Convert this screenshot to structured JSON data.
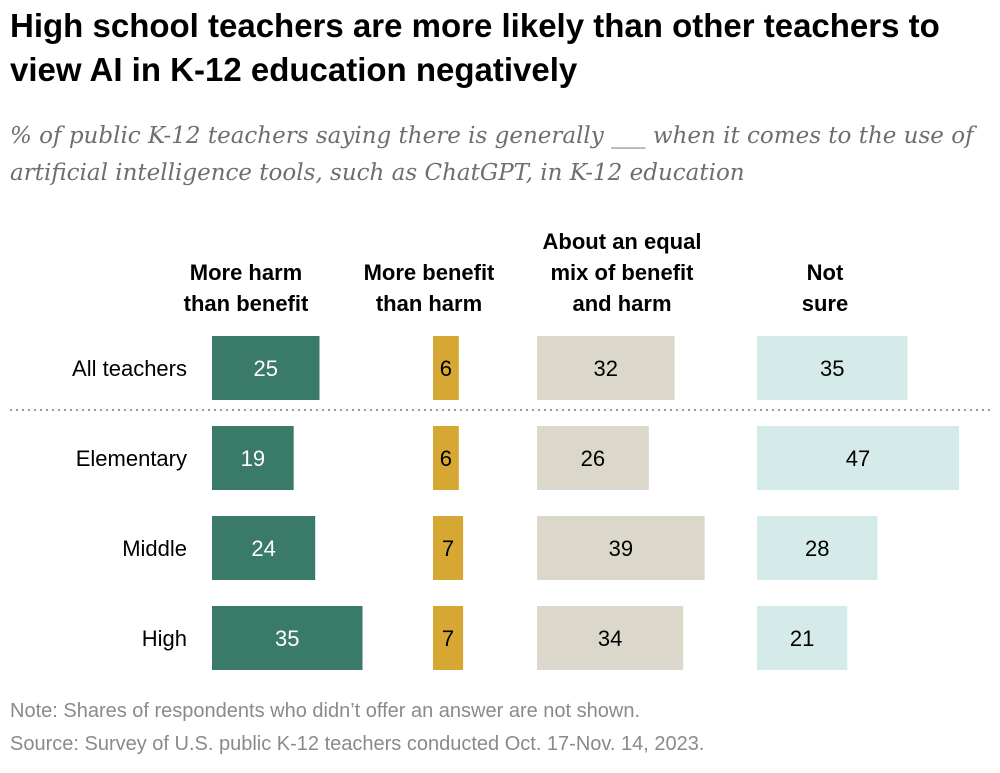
{
  "title": "High school teachers are more likely than other teachers to view AI in K-12 education negatively",
  "subtitle": "% of public K-12 teachers saying there is generally ___ when it comes to the use of artificial intelligence tools, such as ChatGPT, in K-12 education",
  "note": "Note: Shares of respondents who didn’t offer an answer are not shown.",
  "source": "Source: Survey of U.S. public K-12 teachers conducted Oct. 17-Nov. 14, 2023.",
  "chart_data": {
    "type": "bar",
    "orientation": "horizontal",
    "layout": "side-by-side columns",
    "categories": [
      "All teachers",
      "Elementary",
      "Middle",
      "High"
    ],
    "separator_after": "All teachers",
    "series": [
      {
        "name": "More harm than benefit",
        "label_lines": [
          "More harm",
          "than benefit"
        ],
        "values": [
          25,
          19,
          24,
          35
        ],
        "color": "#3a7a68",
        "text_color": "#ffffff"
      },
      {
        "name": "More benefit than harm",
        "label_lines": [
          "More benefit",
          "than harm"
        ],
        "values": [
          6,
          6,
          7,
          7
        ],
        "color": "#d6a733",
        "text_color": "#000000"
      },
      {
        "name": "About an equal mix of benefit and harm",
        "label_lines": [
          "About an equal",
          "mix of benefit",
          "and harm"
        ],
        "values": [
          32,
          26,
          39,
          34
        ],
        "color": "#dbd8cb",
        "text_color": "#000000"
      },
      {
        "name": "Not sure",
        "label_lines": [
          "Not",
          "sure"
        ],
        "values": [
          35,
          47,
          28,
          21
        ],
        "color": "#d5ebea",
        "text_color": "#000000"
      }
    ]
  }
}
